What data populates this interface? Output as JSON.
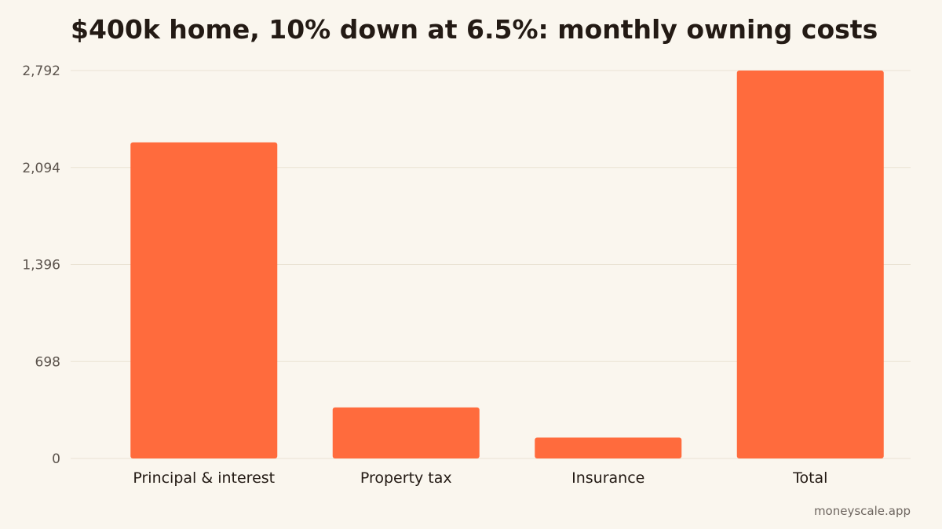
{
  "footer": {
    "source": "moneyscale.app"
  },
  "colors": {
    "bar": "#FF6B3D",
    "grid": "#EAE3D4",
    "tick_text": "#5B534C",
    "category_text": "#231A14"
  },
  "chart_data": {
    "type": "bar",
    "title": "$400k home, 10% down at 6.5%: monthly owning costs",
    "xlabel": "",
    "ylabel": "",
    "categories": [
      "Principal & interest",
      "Property tax",
      "Insurance",
      "Total"
    ],
    "values": [
      2275,
      367,
      150,
      2792
    ],
    "ylim": [
      0,
      2792
    ],
    "yticks": [
      0,
      698,
      1396,
      2094,
      2792
    ],
    "ytick_labels": [
      "0",
      "698",
      "1,396",
      "2,094",
      "2,792"
    ],
    "grid": true,
    "legend": "none"
  }
}
